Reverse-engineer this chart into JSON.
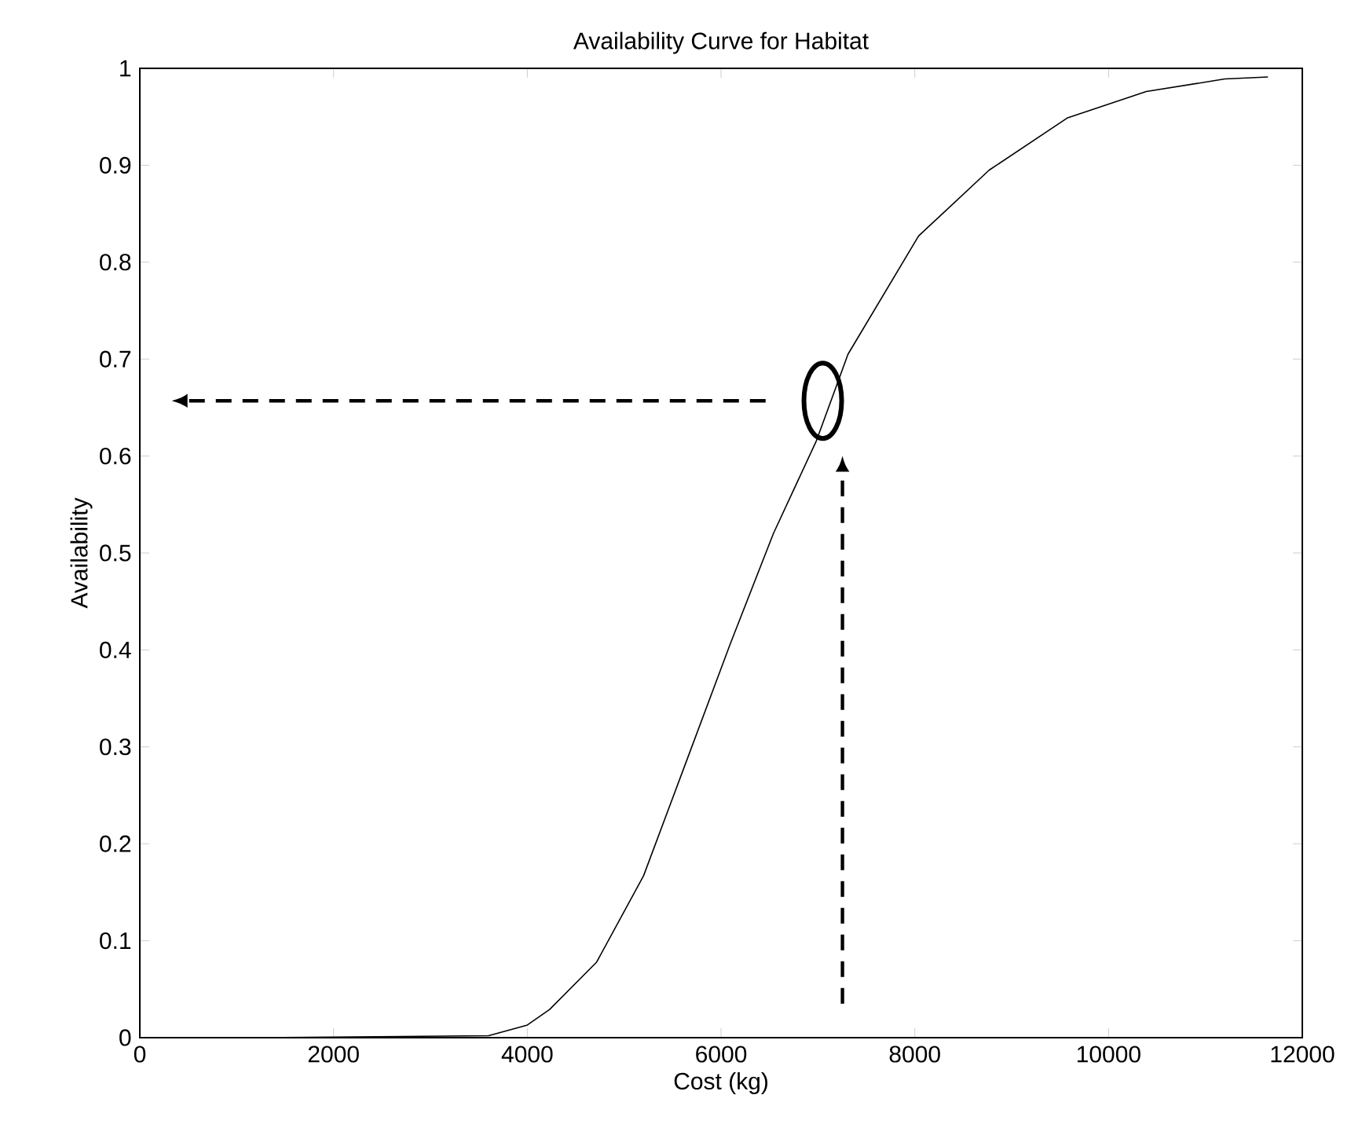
{
  "chart_data": {
    "type": "line",
    "title": "Availability Curve for Habitat",
    "xlabel": "Cost (kg)",
    "ylabel": "Availability",
    "x": [
      1230,
      3600,
      4000,
      4230,
      4716,
      5200,
      5608,
      6094,
      6540,
      6985,
      7310,
      8039,
      8768,
      9578,
      10389,
      11199,
      11645
    ],
    "values": [
      0,
      0.002,
      0.013,
      0.029,
      0.078,
      0.167,
      0.276,
      0.406,
      0.52,
      0.616,
      0.705,
      0.827,
      0.895,
      0.949,
      0.976,
      0.989,
      0.991
    ],
    "color": "#000000",
    "xlim": [
      0,
      12000
    ],
    "ylim": [
      0,
      1
    ],
    "xticks": [
      0,
      2000,
      4000,
      6000,
      8000,
      10000,
      12000
    ],
    "yticks": [
      0,
      0.1,
      0.2,
      0.3,
      0.4,
      0.5,
      0.6,
      0.7,
      0.8,
      0.9,
      1
    ]
  }
}
